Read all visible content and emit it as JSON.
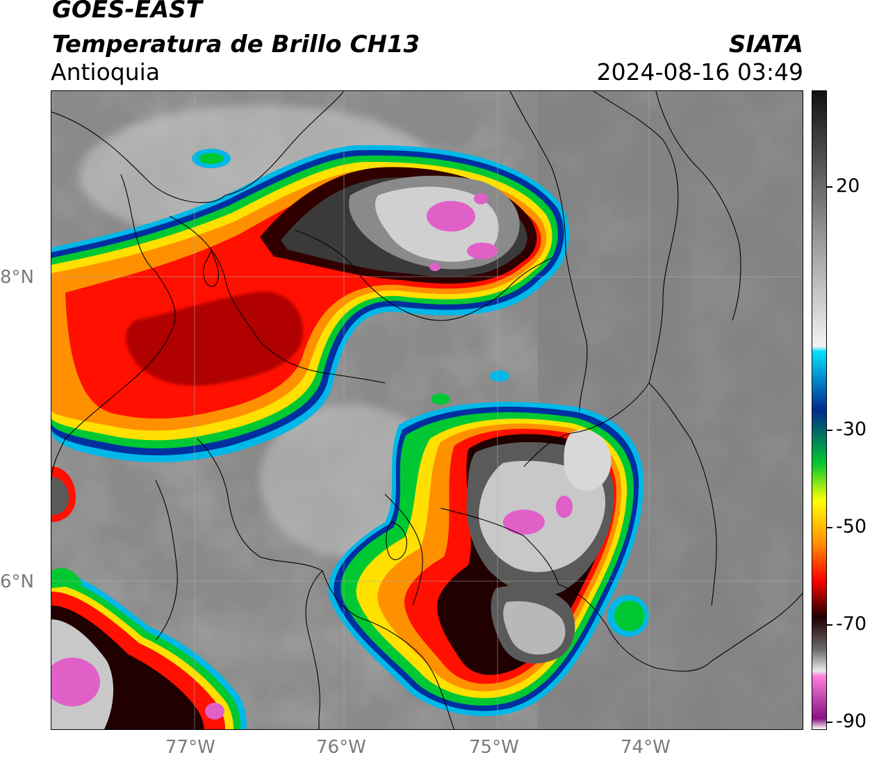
{
  "header": {
    "satellite": "GOES-EAST",
    "product": "Temperatura de Brillo CH13",
    "region": "Antioquia",
    "organization": "SIATA",
    "datetime": "2024-08-16 03:49"
  },
  "map": {
    "lat_labels": [
      "8°N",
      "6°N"
    ],
    "lon_labels": [
      "77°W",
      "76°W",
      "75°W",
      "74°W"
    ],
    "colors": {
      "background": "#8a8a8a",
      "borders": "#000000",
      "gridlines": "#b0b0b0"
    },
    "storm_cells": [
      {
        "name": "northern-storm-complex"
      },
      {
        "name": "central-storm-complex"
      },
      {
        "name": "southwest-storm-cell"
      }
    ]
  },
  "colorbar": {
    "ticks": [
      "20",
      "-30",
      "-50",
      "-70",
      "-90"
    ],
    "stops": [
      {
        "value": 30,
        "color": "#111111"
      },
      {
        "value": 5,
        "color": "#8c8c8c"
      },
      {
        "value": -18,
        "color": "#f2f2f2"
      },
      {
        "value": -19,
        "color": "#00e0ff"
      },
      {
        "value": -30,
        "color": "#002a8f"
      },
      {
        "value": -40,
        "color": "#00c830"
      },
      {
        "value": -47,
        "color": "#ffff00"
      },
      {
        "value": -55,
        "color": "#ff9000"
      },
      {
        "value": -62,
        "color": "#ff0000"
      },
      {
        "value": -69,
        "color": "#200000"
      },
      {
        "value": -75,
        "color": "#6a6a6a"
      },
      {
        "value": -79,
        "color": "#e8e8e8"
      },
      {
        "value": -80,
        "color": "#ff80e0"
      },
      {
        "value": -88,
        "color": "#8a1080"
      },
      {
        "value": -90,
        "color": "#ffffff"
      }
    ]
  }
}
